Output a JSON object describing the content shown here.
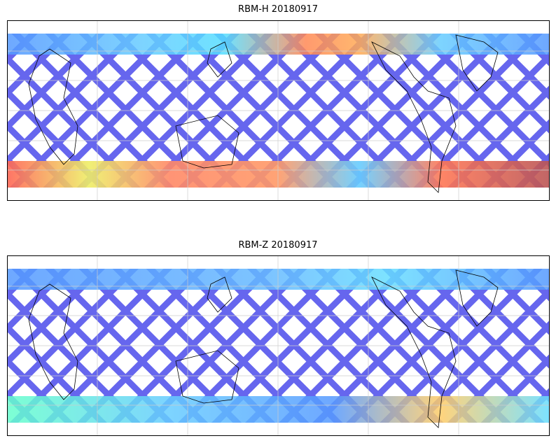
{
  "figure": {
    "panels": [
      {
        "title": "RBM-H 20180917"
      },
      {
        "title": "RBM-Z 20180917"
      }
    ]
  },
  "colors": {
    "low": "#6666ee",
    "mid_low": "#55bbff",
    "mid": "#66ffdd",
    "mid_high": "#eeee66",
    "high": "#ff7755",
    "very_high": "#bb5555",
    "coast": "#000000",
    "grid": "#cccccc"
  }
}
